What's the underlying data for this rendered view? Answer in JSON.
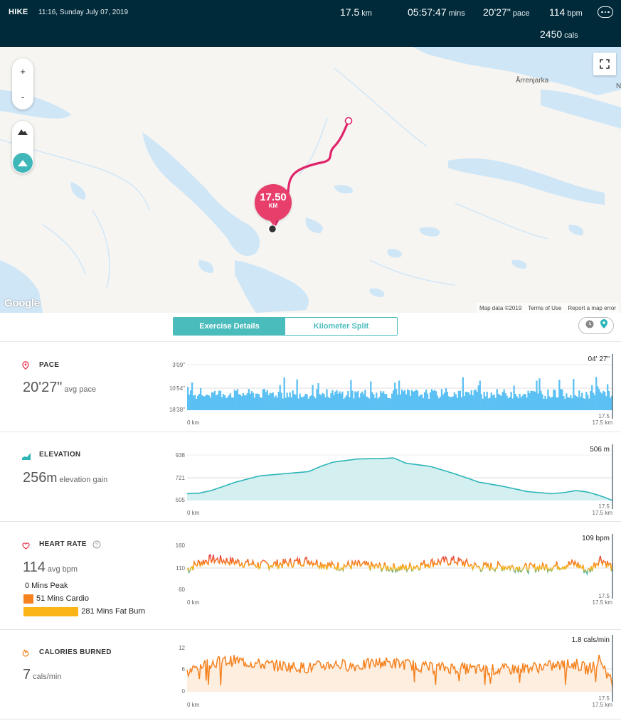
{
  "header": {
    "type": "HIKE",
    "datetime": "11:16, Sunday July 07, 2019",
    "distance": {
      "value": "17.5",
      "unit": "km"
    },
    "duration": {
      "value": "05:57:47",
      "unit": "mins"
    },
    "pace": {
      "value": "20'27\"",
      "unit": "pace"
    },
    "heart_rate": {
      "value": "114",
      "unit": "bpm"
    },
    "calories": {
      "value": "2450",
      "unit": "cals"
    }
  },
  "map": {
    "zoom_in": "+",
    "zoom_out": "-",
    "place_name": "Årrenjarka",
    "place_name_2": "N",
    "marker": {
      "value": "17.50",
      "unit": "KM"
    },
    "attribution": "Google",
    "map_data": "Map data ©2019",
    "terms": "Terms of Use",
    "report": "Report a map error",
    "route_color": "#e0246a",
    "water_color": "#cfe6f7"
  },
  "tabs": [
    {
      "label": "Exercise Details",
      "active": true
    },
    {
      "label": "Kilometer Split",
      "active": false
    }
  ],
  "view_toggle": {
    "icons": [
      "clock-icon",
      "location-pin-icon"
    ]
  },
  "sections": {
    "pace": {
      "title": "PACE",
      "value": "20'27\"",
      "unit": "avg pace",
      "current": "04' 27\"",
      "yticks": [
        "3'09\"",
        "10'54\"",
        "18'38\""
      ],
      "x_start": "0 km",
      "x_end": "17.5 km",
      "cursor_label": "17.5",
      "color": "#5bc0f3"
    },
    "elevation": {
      "title": "ELEVATION",
      "value": "256",
      "unit_m": "m",
      "unit": "elevation gain",
      "current": "506 m",
      "yticks": [
        "938",
        "721",
        "505"
      ],
      "x_start": "0 km",
      "x_end": "17.5 km",
      "cursor_label": "17.5",
      "color": "#2bb5b8"
    },
    "heart_rate": {
      "title": "HEART RATE",
      "value": "114",
      "unit": "avg bpm",
      "current": "109 bpm",
      "yticks": [
        "160",
        "110",
        "60"
      ],
      "x_start": "0 km",
      "x_end": "17.5 km",
      "cursor_label": "17.5",
      "zones": [
        {
          "label": "0 Mins Peak",
          "minutes": 0,
          "color": "#e8344f"
        },
        {
          "label": "51 Mins Cardio",
          "minutes": 51,
          "color": "#f5821f"
        },
        {
          "label": "281 Mins Fat Burn",
          "minutes": 281,
          "color": "#fbb516"
        }
      ]
    },
    "calories": {
      "title": "CALORIES BURNED",
      "value": "7",
      "unit": "cals/min",
      "current": "1.8 cals/min",
      "yticks": [
        "12",
        "6",
        "0"
      ],
      "x_start": "0 km",
      "x_end": "17.5 km",
      "cursor_label": "17.5",
      "color": "#f5821f"
    }
  },
  "chart_data": [
    {
      "type": "bar",
      "title": "PACE",
      "x_unit": "km",
      "xlim": [
        0,
        17.5
      ],
      "y_ticks": [
        "3'09\"",
        "10'54\"",
        "18'38\""
      ],
      "typical_range": [
        "9'00\"",
        "18'38\""
      ]
    },
    {
      "type": "area",
      "title": "ELEVATION",
      "x_unit": "km",
      "xlim": [
        0,
        17.5
      ],
      "ylim": [
        505,
        938
      ],
      "x": [
        0,
        0.5,
        1,
        2,
        3,
        4,
        5,
        5.5,
        6,
        7,
        8,
        8.5,
        9,
        10,
        11,
        12,
        13,
        14,
        15,
        15.5,
        16,
        16.5,
        17,
        17.5
      ],
      "y": [
        570,
        575,
        600,
        680,
        740,
        760,
        780,
        830,
        870,
        900,
        905,
        910,
        860,
        830,
        760,
        680,
        640,
        590,
        570,
        580,
        600,
        585,
        550,
        506
      ]
    },
    {
      "type": "line",
      "title": "HEART RATE",
      "x_unit": "km",
      "xlim": [
        0,
        17.5
      ],
      "ylim": [
        60,
        160
      ],
      "x": [
        0,
        0.5,
        1,
        2,
        3,
        4,
        5,
        6,
        7,
        8,
        9,
        10,
        11,
        12,
        13,
        14,
        15,
        16,
        16.5,
        17,
        17.5
      ],
      "y": [
        105,
        120,
        128,
        122,
        115,
        118,
        125,
        112,
        115,
        110,
        108,
        120,
        125,
        110,
        112,
        108,
        112,
        118,
        100,
        130,
        109
      ]
    },
    {
      "type": "line",
      "title": "CALORIES BURNED",
      "x_unit": "km",
      "xlim": [
        0,
        17.5
      ],
      "ylim": [
        0,
        12
      ],
      "x": [
        0,
        0.5,
        1,
        2,
        3,
        4,
        5,
        6,
        7,
        8,
        9,
        10,
        11,
        12,
        13,
        14,
        15,
        16,
        16.5,
        17,
        17.5
      ],
      "y": [
        5,
        7,
        8,
        8.5,
        7.5,
        7,
        6.5,
        7.5,
        7,
        8,
        7.5,
        6.5,
        6.5,
        6,
        6,
        6.5,
        7,
        7.5,
        6,
        9,
        1.8
      ]
    }
  ]
}
